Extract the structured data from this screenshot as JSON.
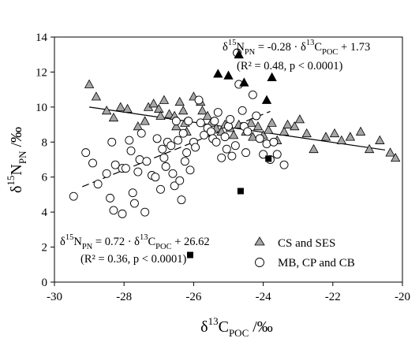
{
  "chart_data": {
    "type": "scatter",
    "xlabel": {
      "main": "δ",
      "sup": "13",
      "mid": "C",
      "sub": "POC",
      "tail": " /‰"
    },
    "ylabel": {
      "main": "δ",
      "sup": "15",
      "mid": "N",
      "sub": "PN",
      "tail": " /‰"
    },
    "xlim": [
      -30,
      -20
    ],
    "ylim": [
      0,
      14
    ],
    "xticks": [
      -30,
      -28,
      -26,
      -24,
      -22,
      -20
    ],
    "yticks": [
      0,
      2,
      4,
      6,
      8,
      10,
      12,
      14
    ],
    "grid": false,
    "legend_position": "bottom-right",
    "legend": [
      {
        "key": "cs_ses",
        "label": "CS and SES",
        "marker": "triangle"
      },
      {
        "key": "mb_cp_cb",
        "label": "MB, CP and CB",
        "marker": "circle"
      }
    ],
    "annotations": {
      "eq_upper": {
        "line1": [
          "δ",
          "15",
          "N",
          "PN",
          " = -0.28 ·  δ",
          "13",
          "C",
          "POC",
          " + 1.73"
        ],
        "line2": "(R² = 0.48, p < 0.0001)"
      },
      "eq_lower": {
        "line1": [
          "δ",
          "15",
          "N",
          "PN",
          " = 0.72 ·  δ",
          "13",
          "C",
          "POC",
          " + 26.62"
        ],
        "line2": "(R² = 0.36, p < 0.0001)"
      }
    },
    "fit_lines": [
      {
        "name": "",
        "style": "solid",
        "x": [
          -29.0,
          -20.5
        ],
        "y": [
          10.0,
          7.55
        ]
      },
      {
        "name": "",
        "style": "dashed",
        "x": [
          -29.2,
          -23.8
        ],
        "y": [
          5.45,
          9.75
        ]
      }
    ],
    "series": [
      {
        "key": "cs_ses",
        "name": "CS and SES",
        "marker": "triangle-gray",
        "color": "#a6a6a6",
        "points": [
          [
            -29.0,
            11.3
          ],
          [
            -28.8,
            10.6
          ],
          [
            -28.5,
            9.8
          ],
          [
            -28.3,
            9.4
          ],
          [
            -28.1,
            10.0
          ],
          [
            -27.9,
            9.9
          ],
          [
            -27.6,
            8.9
          ],
          [
            -27.4,
            9.2
          ],
          [
            -27.3,
            10.0
          ],
          [
            -27.15,
            10.2
          ],
          [
            -27.0,
            9.9
          ],
          [
            -26.95,
            9.5
          ],
          [
            -26.85,
            10.4
          ],
          [
            -26.7,
            9.6
          ],
          [
            -26.55,
            9.5
          ],
          [
            -26.5,
            8.9
          ],
          [
            -26.4,
            10.3
          ],
          [
            -26.3,
            9.8
          ],
          [
            -26.25,
            9.1
          ],
          [
            -26.2,
            8.6
          ],
          [
            -26.0,
            10.6
          ],
          [
            -25.8,
            10.3
          ],
          [
            -25.75,
            9.8
          ],
          [
            -25.6,
            9.5
          ],
          [
            -25.5,
            9.1
          ],
          [
            -25.35,
            8.8
          ],
          [
            -25.2,
            8.6
          ],
          [
            -25.1,
            9.0
          ],
          [
            -24.95,
            8.8
          ],
          [
            -24.85,
            8.4
          ],
          [
            -24.7,
            9.0
          ],
          [
            -24.5,
            8.6
          ],
          [
            -24.35,
            9.1
          ],
          [
            -24.3,
            8.3
          ],
          [
            -24.15,
            8.9
          ],
          [
            -24.0,
            8.4
          ],
          [
            -23.85,
            8.7
          ],
          [
            -23.75,
            9.1
          ],
          [
            -23.6,
            8.1
          ],
          [
            -23.4,
            8.6
          ],
          [
            -23.3,
            9.0
          ],
          [
            -23.1,
            8.9
          ],
          [
            -22.95,
            9.3
          ],
          [
            -22.75,
            8.5
          ],
          [
            -22.55,
            7.6
          ],
          [
            -22.2,
            8.3
          ],
          [
            -21.95,
            8.5
          ],
          [
            -21.75,
            8.1
          ],
          [
            -21.5,
            8.3
          ],
          [
            -21.2,
            8.6
          ],
          [
            -20.95,
            7.6
          ],
          [
            -20.65,
            8.1
          ],
          [
            -20.35,
            7.4
          ],
          [
            -20.2,
            7.1
          ]
        ]
      },
      {
        "key": "mb_cp_cb",
        "name": "MB, CP and CB",
        "marker": "circle-open",
        "color": "#ffffff",
        "points": [
          [
            -29.45,
            4.9
          ],
          [
            -29.1,
            7.4
          ],
          [
            -28.9,
            6.8
          ],
          [
            -28.75,
            5.6
          ],
          [
            -28.5,
            6.2
          ],
          [
            -28.4,
            4.8
          ],
          [
            -28.35,
            8.0
          ],
          [
            -28.3,
            4.1
          ],
          [
            -28.25,
            6.7
          ],
          [
            -28.05,
            3.9
          ],
          [
            -28.05,
            6.5
          ],
          [
            -27.95,
            6.5
          ],
          [
            -27.85,
            8.1
          ],
          [
            -27.8,
            7.5
          ],
          [
            -27.75,
            5.1
          ],
          [
            -27.7,
            4.5
          ],
          [
            -27.6,
            6.3
          ],
          [
            -27.55,
            7.0
          ],
          [
            -27.5,
            8.5
          ],
          [
            -27.4,
            4.0
          ],
          [
            -27.35,
            6.9
          ],
          [
            -27.2,
            6.1
          ],
          [
            -27.1,
            6.0
          ],
          [
            -27.05,
            8.2
          ],
          [
            -26.95,
            5.3
          ],
          [
            -26.9,
            7.6
          ],
          [
            -26.85,
            7.1
          ],
          [
            -26.8,
            6.6
          ],
          [
            -26.75,
            8.0
          ],
          [
            -26.65,
            7.8
          ],
          [
            -26.6,
            6.2
          ],
          [
            -26.55,
            5.5
          ],
          [
            -26.5,
            9.2
          ],
          [
            -26.45,
            8.1
          ],
          [
            -26.4,
            5.8
          ],
          [
            -26.35,
            4.7
          ],
          [
            -26.3,
            8.5
          ],
          [
            -26.25,
            6.9
          ],
          [
            -26.2,
            7.4
          ],
          [
            -26.15,
            9.2
          ],
          [
            -26.1,
            6.4
          ],
          [
            -26.0,
            8.0
          ],
          [
            -25.95,
            7.7
          ],
          [
            -25.85,
            10.4
          ],
          [
            -25.8,
            9.1
          ],
          [
            -25.7,
            8.4
          ],
          [
            -25.6,
            8.8
          ],
          [
            -25.5,
            8.6
          ],
          [
            -25.45,
            8.2
          ],
          [
            -25.4,
            9.2
          ],
          [
            -25.35,
            8.0
          ],
          [
            -25.3,
            9.7
          ],
          [
            -25.2,
            7.1
          ],
          [
            -25.1,
            8.3
          ],
          [
            -25.05,
            7.6
          ],
          [
            -25.0,
            8.9
          ],
          [
            -24.95,
            9.3
          ],
          [
            -24.9,
            7.2
          ],
          [
            -24.8,
            7.8
          ],
          [
            -24.75,
            13.1
          ],
          [
            -24.7,
            11.3
          ],
          [
            -24.6,
            9.8
          ],
          [
            -24.55,
            8.9
          ],
          [
            -24.5,
            7.4
          ],
          [
            -24.45,
            8.6
          ],
          [
            -24.3,
            10.7
          ],
          [
            -24.2,
            9.5
          ],
          [
            -24.1,
            8.2
          ],
          [
            -24.0,
            7.3
          ],
          [
            -23.9,
            7.9
          ],
          [
            -23.8,
            7.0
          ],
          [
            -23.7,
            8.0
          ],
          [
            -23.6,
            7.3
          ],
          [
            -23.4,
            6.7
          ]
        ]
      },
      {
        "key": "black_triangles",
        "name": "",
        "marker": "triangle-black",
        "color": "#000000",
        "points": [
          [
            -25.3,
            11.9
          ],
          [
            -25.0,
            11.8
          ],
          [
            -24.7,
            13.0
          ],
          [
            -24.55,
            11.4
          ],
          [
            -23.75,
            11.7
          ],
          [
            -23.9,
            10.4
          ]
        ]
      },
      {
        "key": "black_squares",
        "name": "",
        "marker": "square-black",
        "color": "#000000",
        "points": [
          [
            -26.1,
            1.55
          ],
          [
            -24.65,
            5.2
          ],
          [
            -23.85,
            7.05
          ]
        ]
      }
    ]
  }
}
